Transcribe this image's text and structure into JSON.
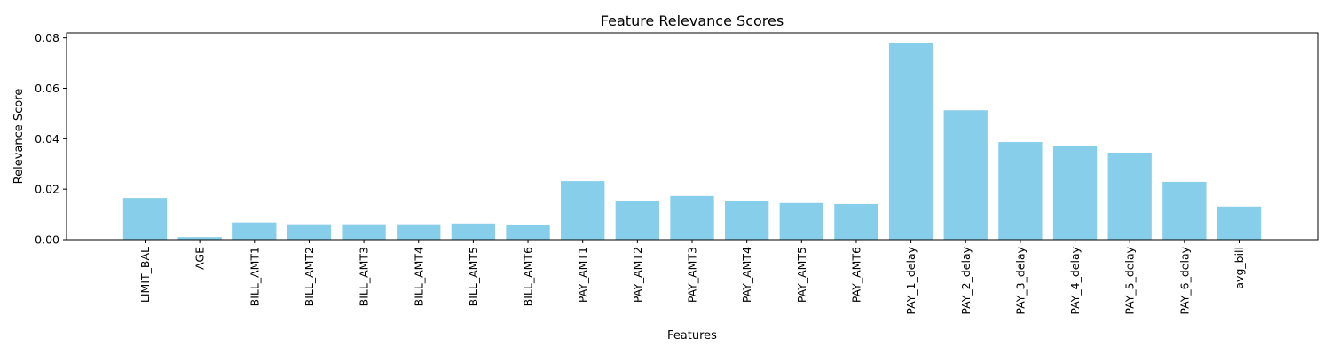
{
  "chart_data": {
    "type": "bar",
    "title": "Feature Relevance Scores",
    "xlabel": "Features",
    "ylabel": "Relevance Score",
    "categories": [
      "LIMIT_BAL",
      "AGE",
      "BILL_AMT1",
      "BILL_AMT2",
      "BILL_AMT3",
      "BILL_AMT4",
      "BILL_AMT5",
      "BILL_AMT6",
      "PAY_AMT1",
      "PAY_AMT2",
      "PAY_AMT3",
      "PAY_AMT4",
      "PAY_AMT5",
      "PAY_AMT6",
      "PAY_1_delay",
      "PAY_2_delay",
      "PAY_3_delay",
      "PAY_4_delay",
      "PAY_5_delay",
      "PAY_6_delay",
      "avg_bill"
    ],
    "values": [
      0.0165,
      0.001,
      0.0068,
      0.0061,
      0.0061,
      0.0061,
      0.0064,
      0.006,
      0.0232,
      0.0154,
      0.0173,
      0.0152,
      0.0145,
      0.0141,
      0.0779,
      0.0513,
      0.0387,
      0.037,
      0.0345,
      0.0229,
      0.0131
    ],
    "ylim": [
      0,
      0.082
    ],
    "yticks": [
      0,
      0.02,
      0.04,
      0.06,
      0.08
    ],
    "ytick_labels": [
      "0.00",
      "0.02",
      "0.04",
      "0.06",
      "0.08"
    ],
    "bar_color": "#87CEEB",
    "grid": false,
    "legend": false
  }
}
